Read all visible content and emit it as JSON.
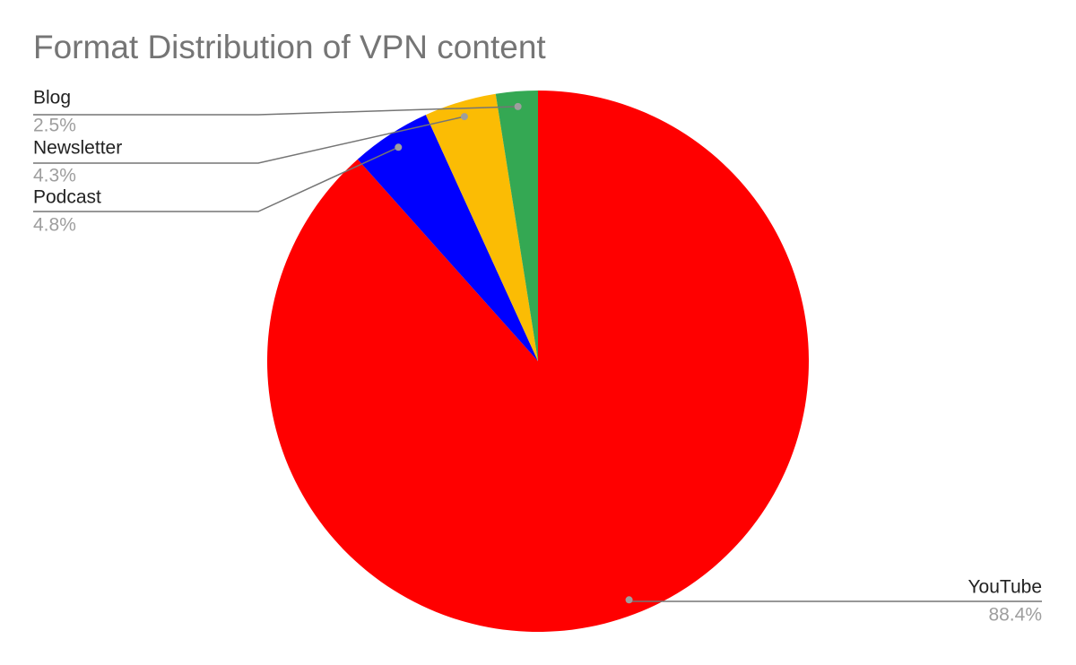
{
  "chart_data": {
    "type": "pie",
    "title": "Format Distribution of VPN content",
    "categories": [
      "YouTube",
      "Podcast",
      "Newsletter",
      "Blog"
    ],
    "values": [
      88.4,
      4.8,
      4.3,
      2.5
    ],
    "value_labels": [
      "88.4%",
      "4.8%",
      "4.3%",
      "2.5%"
    ],
    "colors": [
      "#ff0000",
      "#0000ff",
      "#fbbc04",
      "#34a853"
    ]
  }
}
